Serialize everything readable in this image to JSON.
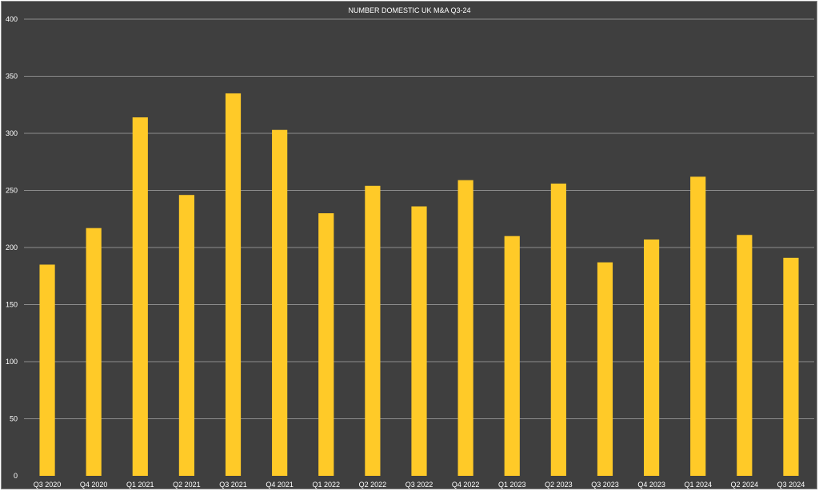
{
  "chart_data": {
    "type": "bar",
    "title": "NUMBER DOMESTIC UK M&A Q3-24",
    "xlabel": "",
    "ylabel": "",
    "categories": [
      "Q3 2020",
      "Q4 2020",
      "Q1 2021",
      "Q2 2021",
      "Q3 2021",
      "Q4 2021",
      "Q1 2022",
      "Q2 2022",
      "Q3 2022",
      "Q4 2022",
      "Q1 2023",
      "Q2 2023",
      "Q3 2023",
      "Q4 2023",
      "Q1 2024",
      "Q2 2024",
      "Q3 2024"
    ],
    "values": [
      185,
      217,
      314,
      246,
      335,
      303,
      230,
      254,
      236,
      259,
      210,
      256,
      187,
      207,
      262,
      211,
      191
    ],
    "ylim": [
      0,
      400
    ],
    "yticks": [
      0,
      50,
      100,
      150,
      200,
      250,
      300,
      350,
      400
    ],
    "grid": true,
    "legend": "none",
    "colors": {
      "background": "#3f3f3f",
      "bar": "#ffca28",
      "grid": "#8c8c8c",
      "text": "#ffffff"
    }
  }
}
